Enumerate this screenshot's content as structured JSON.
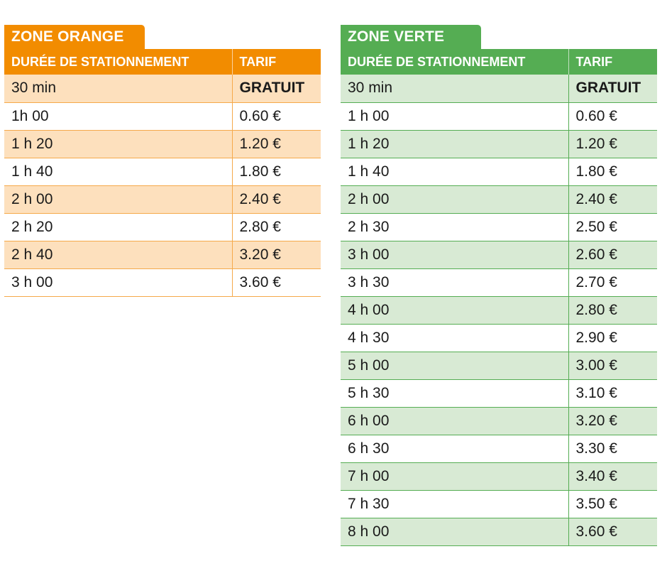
{
  "colors": {
    "orange": "#f28c00",
    "orange_light": "#fde0bd",
    "green": "#55ad53",
    "green_light": "#d8ead4"
  },
  "zones": [
    {
      "title": "ZONE ORANGE",
      "headers": {
        "duration": "DURÉE DE STATIONNEMENT",
        "tarif": "TARIF"
      },
      "rows": [
        {
          "duration": "30 min",
          "tarif": "GRATUIT"
        },
        {
          "duration": "1h 00",
          "tarif": "0.60 €"
        },
        {
          "duration": "1 h 20",
          "tarif": "1.20 €"
        },
        {
          "duration": "1 h 40",
          "tarif": "1.80 €"
        },
        {
          "duration": "2 h 00",
          "tarif": "2.40 €"
        },
        {
          "duration": "2 h 20",
          "tarif": "2.80 €"
        },
        {
          "duration": "2 h 40",
          "tarif": "3.20 €"
        },
        {
          "duration": "3 h 00",
          "tarif": "3.60 €"
        }
      ]
    },
    {
      "title": "ZONE VERTE",
      "headers": {
        "duration": "DURÉE DE STATIONNEMENT",
        "tarif": "TARIF"
      },
      "rows": [
        {
          "duration": "30 min",
          "tarif": "GRATUIT"
        },
        {
          "duration": "1 h 00",
          "tarif": "0.60 €"
        },
        {
          "duration": "1 h 20",
          "tarif": "1.20 €"
        },
        {
          "duration": "1 h 40",
          "tarif": "1.80 €"
        },
        {
          "duration": "2 h 00",
          "tarif": "2.40 €"
        },
        {
          "duration": "2 h 30",
          "tarif": "2.50 €"
        },
        {
          "duration": "3 h 00",
          "tarif": "2.60 €"
        },
        {
          "duration": "3 h 30",
          "tarif": "2.70 €"
        },
        {
          "duration": "4 h 00",
          "tarif": "2.80 €"
        },
        {
          "duration": "4 h 30",
          "tarif": "2.90 €"
        },
        {
          "duration": "5 h 00",
          "tarif": "3.00 €"
        },
        {
          "duration": "5 h 30",
          "tarif": "3.10 €"
        },
        {
          "duration": "6 h 00",
          "tarif": "3.20 €"
        },
        {
          "duration": "6 h 30",
          "tarif": "3.30 €"
        },
        {
          "duration": "7 h 00",
          "tarif": "3.40 €"
        },
        {
          "duration": "7 h 30",
          "tarif": "3.50 €"
        },
        {
          "duration": "8 h 00",
          "tarif": "3.60 €"
        }
      ]
    }
  ]
}
